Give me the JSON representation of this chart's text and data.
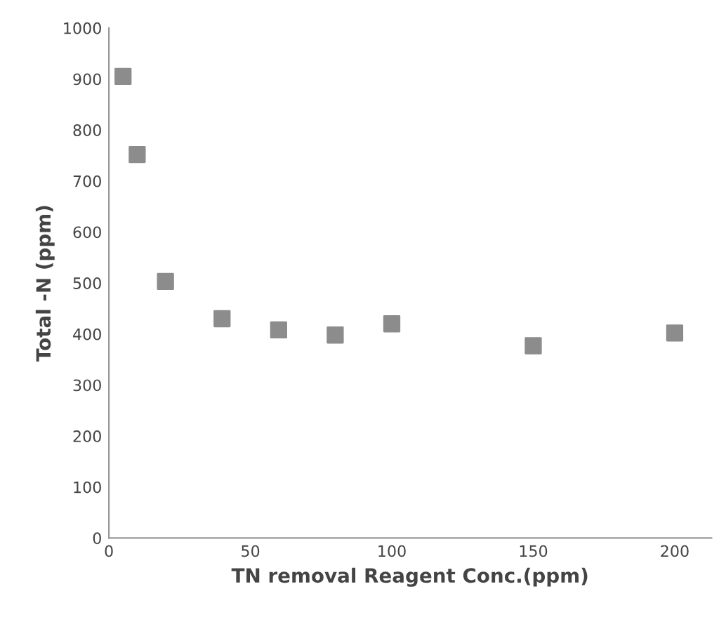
{
  "chart_data": {
    "type": "scatter",
    "xlabel": "TN removal Reagent Conc.(ppm)",
    "ylabel": "Total -N (ppm)",
    "series": [
      {
        "color": "#8c8c8c",
        "x": [
          5,
          10,
          20,
          40,
          60,
          80,
          100,
          150,
          200
        ],
        "values": [
          905,
          752,
          503,
          430,
          408,
          398,
          420,
          377,
          402
        ]
      }
    ],
    "marker": "square",
    "xlim": [
      0,
      213
    ],
    "xticks": [
      0,
      50,
      100,
      150,
      200
    ],
    "ylim": [
      0,
      1000
    ],
    "yticks": [
      0,
      100,
      200,
      300,
      400,
      500,
      600,
      700,
      800,
      900,
      1000
    ],
    "grid": false,
    "legend": false
  }
}
